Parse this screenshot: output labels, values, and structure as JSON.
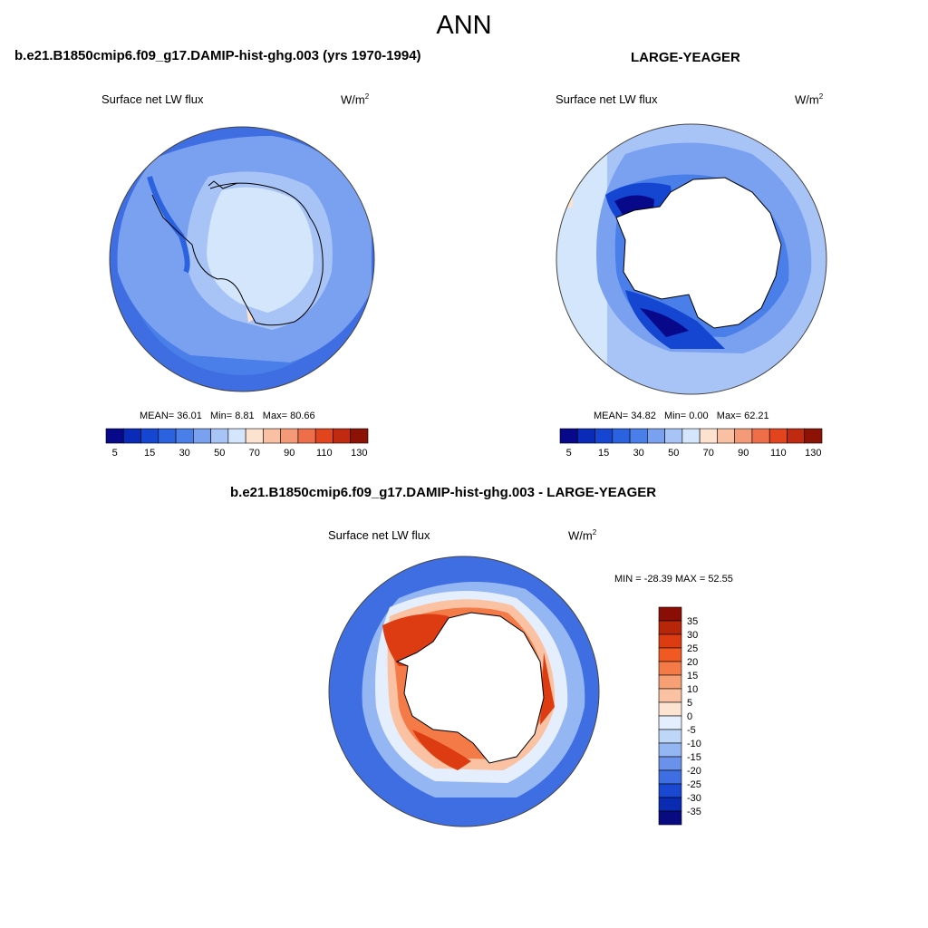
{
  "figure": {
    "season": "ANN"
  },
  "panels": [
    {
      "title": "b.e21.B1850cmip6.f09_g17.DAMIP-hist-ghg.003 (yrs 1970-1994)",
      "variable": "Surface net LW flux",
      "units": "W/m",
      "units_exp": "2",
      "stats": {
        "mean_label": "MEAN=",
        "mean": "36.01",
        "min_label": "Min=",
        "min": "8.81",
        "max_label": "Max=",
        "max": "80.66"
      },
      "colorbar_ticks": [
        "5",
        "15",
        "30",
        "50",
        "70",
        "90",
        "110",
        "130"
      ]
    },
    {
      "title": "LARGE-YEAGER",
      "variable": "Surface net LW flux",
      "units": "W/m",
      "units_exp": "2",
      "stats": {
        "mean_label": "MEAN=",
        "mean": "34.82",
        "min_label": "Min=",
        "min": "0.00",
        "max_label": "Max=",
        "max": "62.21"
      },
      "colorbar_ticks": [
        "5",
        "15",
        "30",
        "50",
        "70",
        "90",
        "110",
        "130"
      ]
    },
    {
      "title": "b.e21.B1850cmip6.f09_g17.DAMIP-hist-ghg.003 - LARGE-YEAGER",
      "variable": "Surface net LW flux",
      "units": "W/m",
      "units_exp": "2",
      "stats": {
        "text": "MIN = -28.39 MAX =  52.55"
      },
      "colorbar_ticks": [
        "35",
        "30",
        "25",
        "20",
        "15",
        "10",
        "5",
        "0",
        "-5",
        "-10",
        "-15",
        "-20",
        "-25",
        "-30",
        "-35"
      ]
    }
  ],
  "colors": {
    "abs_scale": [
      "#08088a",
      "#0a2ab8",
      "#1446d2",
      "#2a62e0",
      "#4a7ee8",
      "#7aa0f0",
      "#a8c4f6",
      "#d4e6fb",
      "#fde2d0",
      "#f9c0a4",
      "#f59a78",
      "#ef6e4a",
      "#e2441e",
      "#c02a10",
      "#8c1206"
    ],
    "diff_scale": [
      "#8a0e06",
      "#b72608",
      "#dd3c12",
      "#f05a22",
      "#f47a48",
      "#f7a076",
      "#fac2a2",
      "#fde3d2",
      "#e4eefc",
      "#bed6f8",
      "#94b6f2",
      "#6a92ea",
      "#3e6ee2",
      "#1a48d2",
      "#0a2ab2",
      "#080a80"
    ],
    "land": "#ffffff",
    "coast": "#000000"
  }
}
